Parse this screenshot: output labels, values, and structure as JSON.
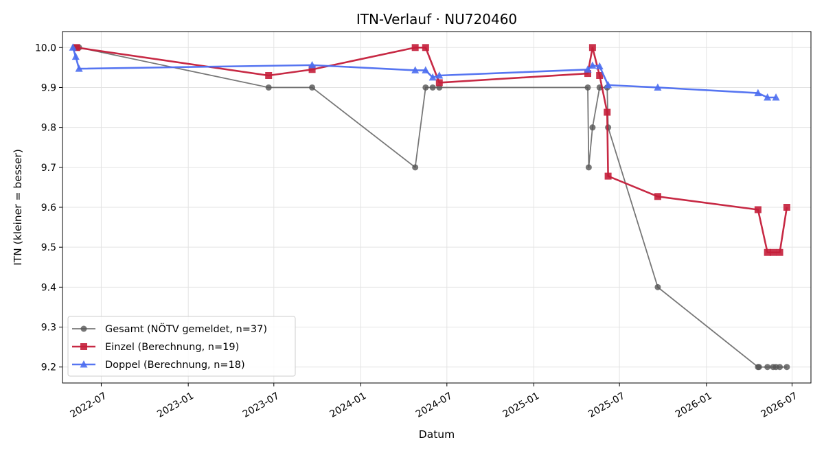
{
  "chart_data": {
    "type": "line",
    "title": "ITN-Verlauf · NU720460",
    "xlabel": "Datum",
    "ylabel": "ITN  (kleiner = besser)",
    "ylim": [
      9.16,
      10.04
    ],
    "xlim": [
      "2022-04-10",
      "2026-08-10"
    ],
    "y_ticks": [
      9.2,
      9.3,
      9.4,
      9.5,
      9.6,
      9.7,
      9.8,
      9.9,
      10.0
    ],
    "x_ticks": [
      "2022-07",
      "2023-01",
      "2023-07",
      "2024-01",
      "2024-07",
      "2025-01",
      "2025-07",
      "2026-01",
      "2026-07"
    ],
    "grid": true,
    "legend_position": "lower-left",
    "series": [
      {
        "name": "Gesamt (NÖTV gemeldet, n=37)",
        "color": "#555555",
        "marker": "circle",
        "points": [
          [
            "2022-05-05",
            10.0
          ],
          [
            "2022-05-10",
            10.0
          ],
          [
            "2022-05-15",
            10.0
          ],
          [
            "2023-06-20",
            9.9
          ],
          [
            "2023-09-20",
            9.9
          ],
          [
            "2024-04-25",
            9.7
          ],
          [
            "2024-05-17",
            9.9
          ],
          [
            "2024-06-01",
            9.9
          ],
          [
            "2024-06-15",
            9.9
          ],
          [
            "2025-04-25",
            9.9
          ],
          [
            "2025-04-27",
            9.7
          ],
          [
            "2025-05-05",
            9.8
          ],
          [
            "2025-05-20",
            9.9
          ],
          [
            "2025-06-05",
            9.9
          ],
          [
            "2025-06-07",
            9.8
          ],
          [
            "2025-09-20",
            9.4
          ],
          [
            "2026-04-20",
            9.2
          ],
          [
            "2026-04-22",
            9.2
          ],
          [
            "2026-05-10",
            9.2
          ],
          [
            "2026-05-22",
            9.2
          ],
          [
            "2026-05-28",
            9.2
          ],
          [
            "2026-06-05",
            9.2
          ],
          [
            "2026-06-20",
            9.2
          ]
        ]
      },
      {
        "name": "Einzel (Berechnung, n=19)",
        "color": "#c41e3a",
        "marker": "square",
        "points": [
          [
            "2022-05-10",
            10.0
          ],
          [
            "2023-06-20",
            9.93
          ],
          [
            "2023-09-20",
            9.945
          ],
          [
            "2024-04-25",
            10.0
          ],
          [
            "2024-05-17",
            10.0
          ],
          [
            "2024-06-15",
            9.912
          ],
          [
            "2025-04-25",
            9.935
          ],
          [
            "2025-05-05",
            10.0
          ],
          [
            "2025-05-20",
            9.93
          ],
          [
            "2025-06-05",
            9.838
          ],
          [
            "2025-06-07",
            9.678
          ],
          [
            "2025-09-20",
            9.627
          ],
          [
            "2026-04-20",
            9.594
          ],
          [
            "2026-05-10",
            9.487
          ],
          [
            "2026-05-22",
            9.487
          ],
          [
            "2026-06-05",
            9.487
          ],
          [
            "2026-06-20",
            9.6
          ]
        ]
      },
      {
        "name": "Doppel (Berechnung, n=18)",
        "color": "#4d6ef0",
        "marker": "triangle",
        "points": [
          [
            "2022-05-02",
            10.0
          ],
          [
            "2022-05-08",
            9.977
          ],
          [
            "2022-05-15",
            9.947
          ],
          [
            "2023-09-20",
            9.956
          ],
          [
            "2024-04-25",
            9.943
          ],
          [
            "2024-05-17",
            9.943
          ],
          [
            "2024-06-01",
            9.925
          ],
          [
            "2024-06-15",
            9.93
          ],
          [
            "2025-04-25",
            9.945
          ],
          [
            "2025-05-05",
            9.955
          ],
          [
            "2025-05-20",
            9.953
          ],
          [
            "2025-06-07",
            9.906
          ],
          [
            "2025-09-20",
            9.9
          ],
          [
            "2026-04-20",
            9.886
          ],
          [
            "2026-05-10",
            9.875
          ],
          [
            "2026-05-28",
            9.875
          ]
        ]
      }
    ]
  }
}
